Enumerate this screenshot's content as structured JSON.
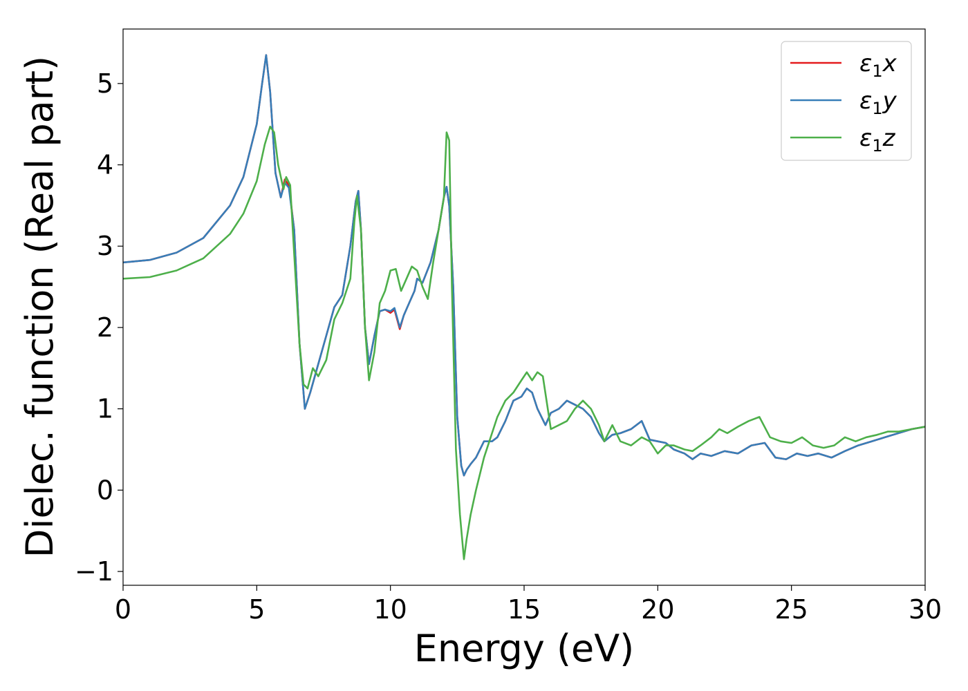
{
  "chart_data": {
    "type": "line",
    "xlabel": "Energy (eV)",
    "ylabel": "Dielec. function (Real part)",
    "xlim": [
      0,
      30
    ],
    "ylim": [
      -1.17,
      5.67
    ],
    "xticks": [
      0,
      5,
      10,
      15,
      20,
      25,
      30
    ],
    "xtick_labels": [
      "0",
      "5",
      "10",
      "15",
      "20",
      "25",
      "30"
    ],
    "yticks": [
      -1,
      0,
      1,
      2,
      3,
      4,
      5
    ],
    "ytick_labels": [
      "−1",
      "0",
      "1",
      "2",
      "3",
      "4",
      "5"
    ],
    "grid": false,
    "legend_position": "top-right",
    "series": [
      {
        "name": "ε1x",
        "legend_base": "ε",
        "legend_sub": "1",
        "legend_var": "x",
        "color": "#e41a1c",
        "x": [
          0,
          1,
          2,
          3,
          4,
          4.5,
          5,
          5.2,
          5.35,
          5.5,
          5.7,
          5.9,
          6.05,
          6.2,
          6.4,
          6.6,
          6.8,
          7.0,
          7.3,
          7.6,
          7.9,
          8.2,
          8.5,
          8.7,
          8.8,
          8.9,
          9.05,
          9.2,
          9.4,
          9.6,
          9.8,
          10.0,
          10.15,
          10.35,
          10.5,
          10.7,
          10.9,
          11.0,
          11.2,
          11.5,
          11.8,
          12.0,
          12.1,
          12.2,
          12.35,
          12.5,
          12.65,
          12.75,
          12.85,
          13.0,
          13.2,
          13.5,
          13.8,
          14.0,
          14.3,
          14.6,
          14.9,
          15.1,
          15.3,
          15.5,
          15.8,
          16.0,
          16.3,
          16.6,
          16.9,
          17.2,
          17.5,
          17.8,
          18.0,
          18.3,
          18.6,
          19.0,
          19.4,
          19.7,
          20.0,
          20.3,
          20.6,
          21.0,
          21.3,
          21.6,
          22.0,
          22.5,
          23.0,
          23.5,
          24.0,
          24.4,
          24.8,
          25.2,
          25.6,
          26.0,
          26.5,
          27.0,
          27.5,
          28.0,
          28.5,
          29.0,
          29.5,
          30.0
        ],
        "y": [
          2.8,
          2.83,
          2.92,
          3.1,
          3.5,
          3.85,
          4.5,
          5.0,
          5.35,
          4.9,
          3.9,
          3.6,
          3.82,
          3.75,
          3.2,
          1.8,
          1.0,
          1.2,
          1.55,
          1.9,
          2.25,
          2.4,
          3.0,
          3.55,
          3.68,
          3.2,
          2.0,
          1.55,
          1.9,
          2.2,
          2.22,
          2.18,
          2.22,
          1.98,
          2.15,
          2.3,
          2.45,
          2.6,
          2.55,
          2.8,
          3.2,
          3.6,
          3.73,
          3.5,
          2.5,
          0.9,
          0.3,
          0.18,
          0.25,
          0.32,
          0.4,
          0.6,
          0.6,
          0.65,
          0.85,
          1.1,
          1.15,
          1.25,
          1.2,
          1.0,
          0.8,
          0.95,
          1.0,
          1.1,
          1.05,
          1.0,
          0.9,
          0.7,
          0.6,
          0.68,
          0.7,
          0.75,
          0.85,
          0.62,
          0.6,
          0.58,
          0.5,
          0.45,
          0.38,
          0.45,
          0.42,
          0.48,
          0.45,
          0.55,
          0.58,
          0.4,
          0.38,
          0.45,
          0.42,
          0.45,
          0.4,
          0.48,
          0.55,
          0.6,
          0.65,
          0.7,
          0.75,
          0.78
        ]
      },
      {
        "name": "ε1y",
        "legend_base": "ε",
        "legend_sub": "1",
        "legend_var": "y",
        "color": "#377eb8",
        "x": [
          0,
          1,
          2,
          3,
          4,
          4.5,
          5,
          5.2,
          5.35,
          5.5,
          5.7,
          5.9,
          6.05,
          6.2,
          6.4,
          6.6,
          6.8,
          7.0,
          7.3,
          7.6,
          7.9,
          8.2,
          8.5,
          8.7,
          8.8,
          8.9,
          9.05,
          9.2,
          9.4,
          9.6,
          9.8,
          10.0,
          10.15,
          10.35,
          10.5,
          10.7,
          10.9,
          11.0,
          11.2,
          11.5,
          11.8,
          12.0,
          12.1,
          12.2,
          12.35,
          12.5,
          12.65,
          12.75,
          12.85,
          13.0,
          13.2,
          13.5,
          13.8,
          14.0,
          14.3,
          14.6,
          14.9,
          15.1,
          15.3,
          15.5,
          15.8,
          16.0,
          16.3,
          16.6,
          16.9,
          17.2,
          17.5,
          17.8,
          18.0,
          18.3,
          18.6,
          19.0,
          19.4,
          19.7,
          20.0,
          20.3,
          20.6,
          21.0,
          21.3,
          21.6,
          22.0,
          22.5,
          23.0,
          23.5,
          24.0,
          24.4,
          24.8,
          25.2,
          25.6,
          26.0,
          26.5,
          27.0,
          27.5,
          28.0,
          28.5,
          29.0,
          29.5,
          30.0
        ],
        "y": [
          2.8,
          2.83,
          2.92,
          3.1,
          3.5,
          3.85,
          4.5,
          5.0,
          5.35,
          4.9,
          3.9,
          3.6,
          3.78,
          3.72,
          3.2,
          1.8,
          1.0,
          1.2,
          1.55,
          1.9,
          2.25,
          2.4,
          3.0,
          3.55,
          3.68,
          3.2,
          2.0,
          1.55,
          1.9,
          2.2,
          2.22,
          2.2,
          2.24,
          2.0,
          2.15,
          2.3,
          2.45,
          2.6,
          2.55,
          2.8,
          3.2,
          3.6,
          3.73,
          3.5,
          2.5,
          0.9,
          0.3,
          0.18,
          0.25,
          0.32,
          0.4,
          0.6,
          0.6,
          0.65,
          0.85,
          1.1,
          1.15,
          1.25,
          1.2,
          1.0,
          0.8,
          0.95,
          1.0,
          1.1,
          1.05,
          1.0,
          0.9,
          0.7,
          0.6,
          0.68,
          0.7,
          0.75,
          0.85,
          0.62,
          0.6,
          0.58,
          0.5,
          0.45,
          0.38,
          0.45,
          0.42,
          0.48,
          0.45,
          0.55,
          0.58,
          0.4,
          0.38,
          0.45,
          0.42,
          0.45,
          0.4,
          0.48,
          0.55,
          0.6,
          0.65,
          0.7,
          0.75,
          0.78
        ]
      },
      {
        "name": "ε1z",
        "legend_base": "ε",
        "legend_sub": "1",
        "legend_var": "z",
        "color": "#4daf4a",
        "x": [
          0,
          1,
          2,
          3,
          4,
          4.5,
          5,
          5.3,
          5.5,
          5.65,
          5.8,
          6.0,
          6.1,
          6.25,
          6.4,
          6.6,
          6.75,
          6.9,
          7.1,
          7.3,
          7.6,
          7.9,
          8.2,
          8.5,
          8.65,
          8.75,
          8.9,
          9.05,
          9.2,
          9.4,
          9.6,
          9.8,
          10.0,
          10.2,
          10.4,
          10.6,
          10.8,
          11.0,
          11.2,
          11.4,
          11.6,
          11.8,
          12.0,
          12.1,
          12.2,
          12.3,
          12.45,
          12.6,
          12.75,
          12.85,
          13.0,
          13.2,
          13.5,
          13.8,
          14.0,
          14.3,
          14.6,
          14.9,
          15.1,
          15.3,
          15.5,
          15.7,
          16.0,
          16.3,
          16.6,
          16.9,
          17.2,
          17.5,
          17.8,
          18.0,
          18.3,
          18.6,
          19.0,
          19.4,
          19.7,
          20.0,
          20.3,
          20.6,
          21.0,
          21.3,
          21.6,
          22.0,
          22.3,
          22.6,
          23.0,
          23.4,
          23.8,
          24.2,
          24.6,
          25.0,
          25.4,
          25.8,
          26.2,
          26.6,
          27.0,
          27.4,
          27.8,
          28.2,
          28.6,
          29.0,
          29.5,
          30.0
        ],
        "y": [
          2.6,
          2.62,
          2.7,
          2.85,
          3.15,
          3.4,
          3.8,
          4.25,
          4.47,
          4.4,
          4.0,
          3.7,
          3.85,
          3.75,
          2.9,
          1.8,
          1.3,
          1.25,
          1.5,
          1.4,
          1.6,
          2.1,
          2.3,
          2.6,
          3.3,
          3.62,
          3.2,
          2.0,
          1.35,
          1.7,
          2.3,
          2.45,
          2.7,
          2.72,
          2.45,
          2.6,
          2.75,
          2.7,
          2.5,
          2.35,
          2.8,
          3.2,
          3.6,
          4.4,
          4.3,
          2.5,
          0.5,
          -0.3,
          -0.85,
          -0.6,
          -0.3,
          0.0,
          0.4,
          0.7,
          0.9,
          1.1,
          1.2,
          1.35,
          1.45,
          1.35,
          1.45,
          1.4,
          0.75,
          0.8,
          0.85,
          1.0,
          1.1,
          1.0,
          0.8,
          0.6,
          0.8,
          0.6,
          0.55,
          0.65,
          0.6,
          0.45,
          0.55,
          0.55,
          0.5,
          0.48,
          0.55,
          0.65,
          0.75,
          0.7,
          0.78,
          0.85,
          0.9,
          0.65,
          0.6,
          0.58,
          0.65,
          0.55,
          0.52,
          0.55,
          0.65,
          0.6,
          0.65,
          0.68,
          0.72,
          0.72,
          0.75,
          0.78
        ]
      }
    ]
  }
}
